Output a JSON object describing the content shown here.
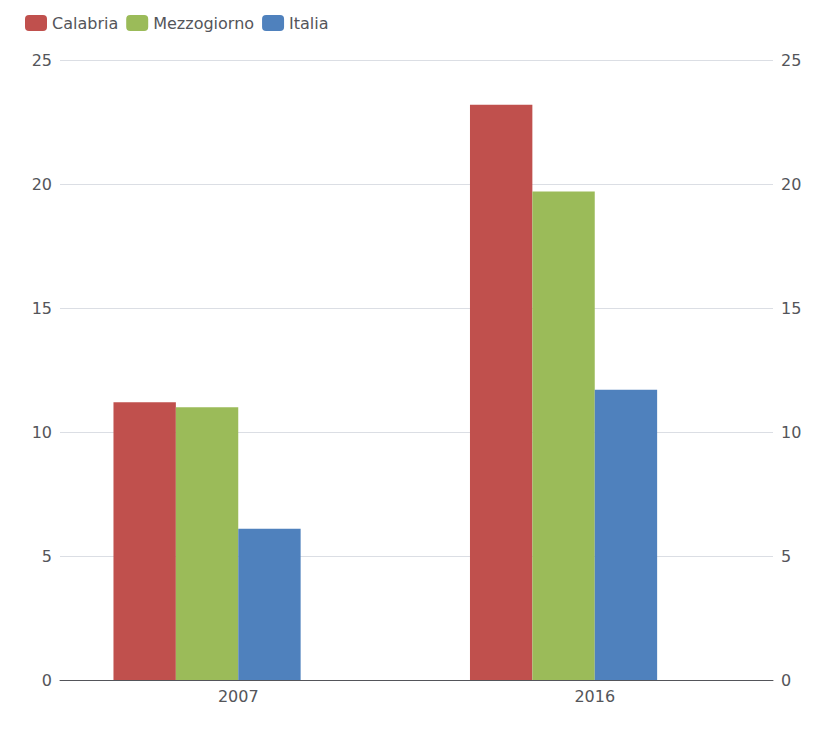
{
  "chart_data": {
    "type": "bar",
    "categories": [
      "2007",
      "2016"
    ],
    "series": [
      {
        "name": "Calabria",
        "color": "#C0504D",
        "values": [
          11.2,
          23.2
        ]
      },
      {
        "name": "Mezzogiorno",
        "color": "#9BBB59",
        "values": [
          11.0,
          19.7
        ]
      },
      {
        "name": "Italia",
        "color": "#4F81BD",
        "values": [
          6.1,
          11.7
        ]
      }
    ],
    "ylim": [
      0,
      25
    ],
    "yticks": [
      0,
      5,
      10,
      15,
      20,
      25
    ],
    "y2lim": [
      0,
      25
    ],
    "y2ticks": [
      0,
      5,
      10,
      15,
      20,
      25
    ],
    "grid": true,
    "legend": "upper left"
  }
}
